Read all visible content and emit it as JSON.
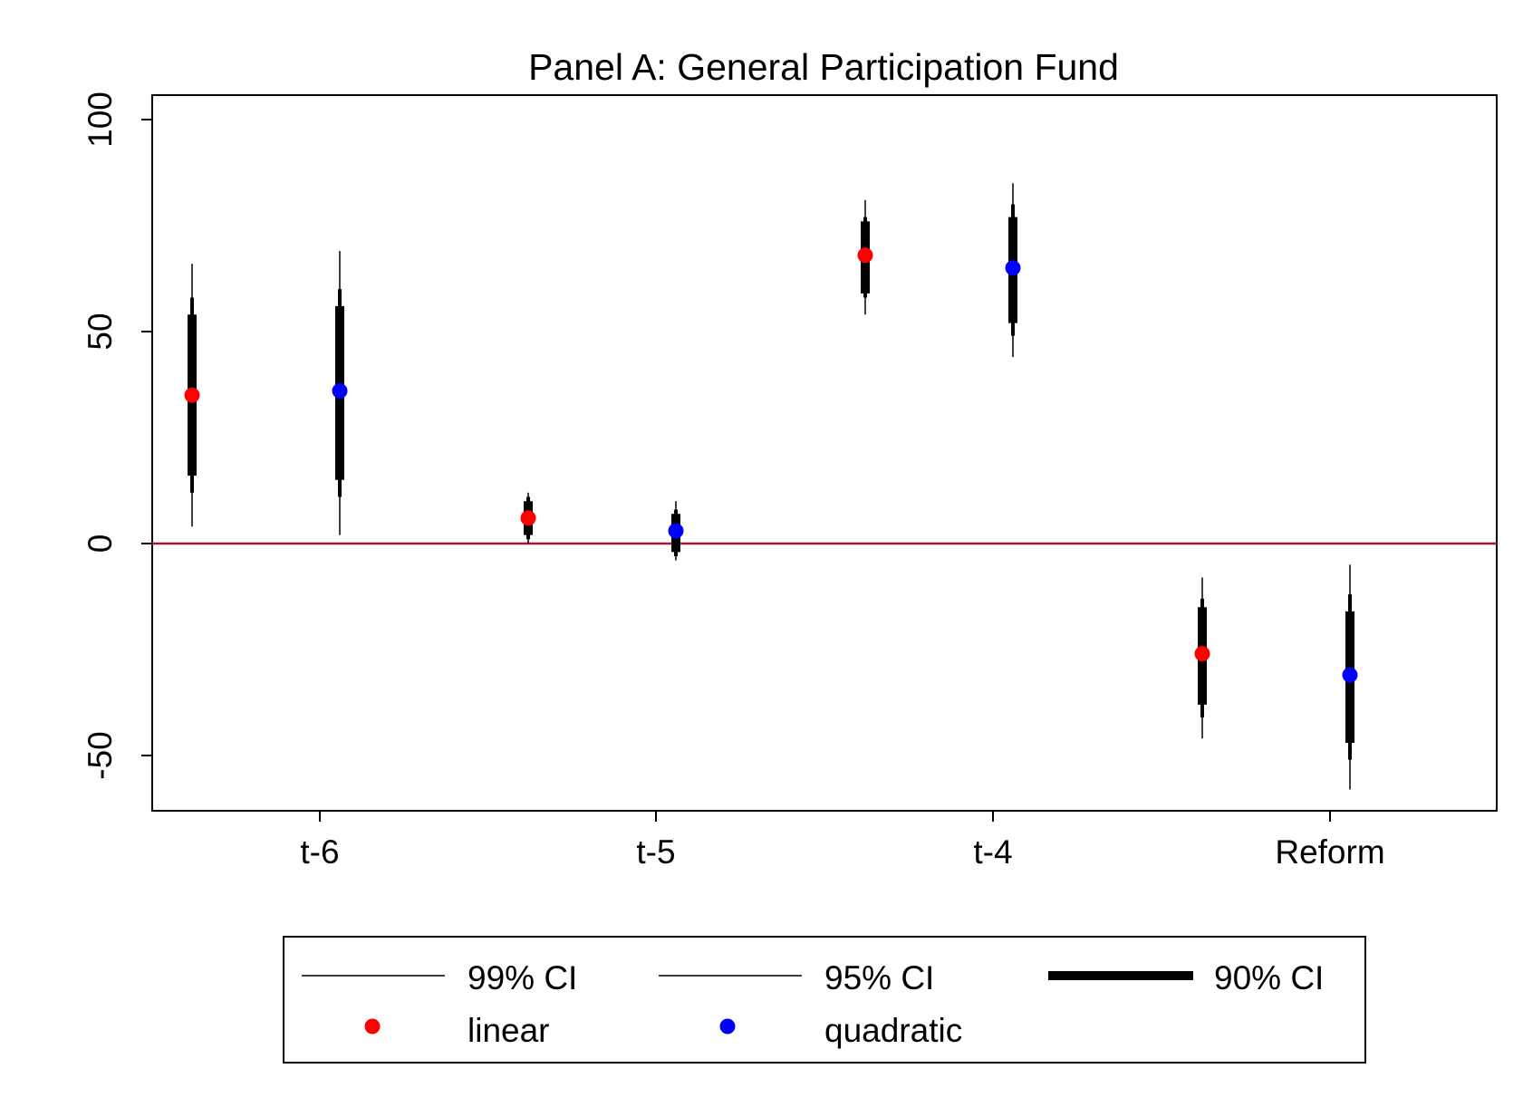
{
  "chart_data": {
    "type": "scatter",
    "title": "Panel A: General Participation Fund",
    "xlabel": "",
    "ylabel": "",
    "categories": [
      "t-6",
      "t-5",
      "t-4",
      "Reform"
    ],
    "ylim": [
      -63,
      106
    ],
    "y_ticks": [
      "100",
      "50",
      "0",
      "-50"
    ],
    "y_tick_values": [
      100,
      50,
      0,
      -50
    ],
    "reference_line": {
      "y": 0,
      "color": "#b5123a"
    },
    "grid": false,
    "legend_position": "bottom",
    "legend": {
      "ci99": "99% CI",
      "ci95": "95% CI",
      "ci90": "90% CI",
      "linear": "linear",
      "quadratic": "quadratic"
    },
    "series": [
      {
        "name": "linear",
        "color": "#ff0000",
        "points": [
          {
            "category": "t-6",
            "estimate": 35,
            "ci99": [
              4,
              66
            ],
            "ci95": [
              12,
              58
            ],
            "ci90": [
              16,
              54
            ]
          },
          {
            "category": "t-5",
            "estimate": 6,
            "ci99": [
              0,
              12
            ],
            "ci95": [
              1,
              11
            ],
            "ci90": [
              2,
              10
            ]
          },
          {
            "category": "t-4",
            "estimate": 68,
            "ci99": [
              54,
              81
            ],
            "ci95": [
              58,
              77
            ],
            "ci90": [
              59,
              76
            ]
          },
          {
            "category": "Reform",
            "estimate": -26,
            "ci99": [
              -46,
              -8
            ],
            "ci95": [
              -41,
              -13
            ],
            "ci90": [
              -38,
              -15
            ]
          }
        ]
      },
      {
        "name": "quadratic",
        "color": "#0000ff",
        "points": [
          {
            "category": "t-6",
            "estimate": 36,
            "ci99": [
              2,
              69
            ],
            "ci95": [
              11,
              60
            ],
            "ci90": [
              15,
              56
            ]
          },
          {
            "category": "t-5",
            "estimate": 3,
            "ci99": [
              -4,
              10
            ],
            "ci95": [
              -3,
              8
            ],
            "ci90": [
              -2,
              7
            ]
          },
          {
            "category": "t-4",
            "estimate": 65,
            "ci99": [
              44,
              85
            ],
            "ci95": [
              49,
              80
            ],
            "ci90": [
              52,
              77
            ]
          },
          {
            "category": "Reform",
            "estimate": -31,
            "ci99": [
              -58,
              -5
            ],
            "ci95": [
              -51,
              -12
            ],
            "ci90": [
              -47,
              -16
            ]
          }
        ]
      }
    ]
  }
}
